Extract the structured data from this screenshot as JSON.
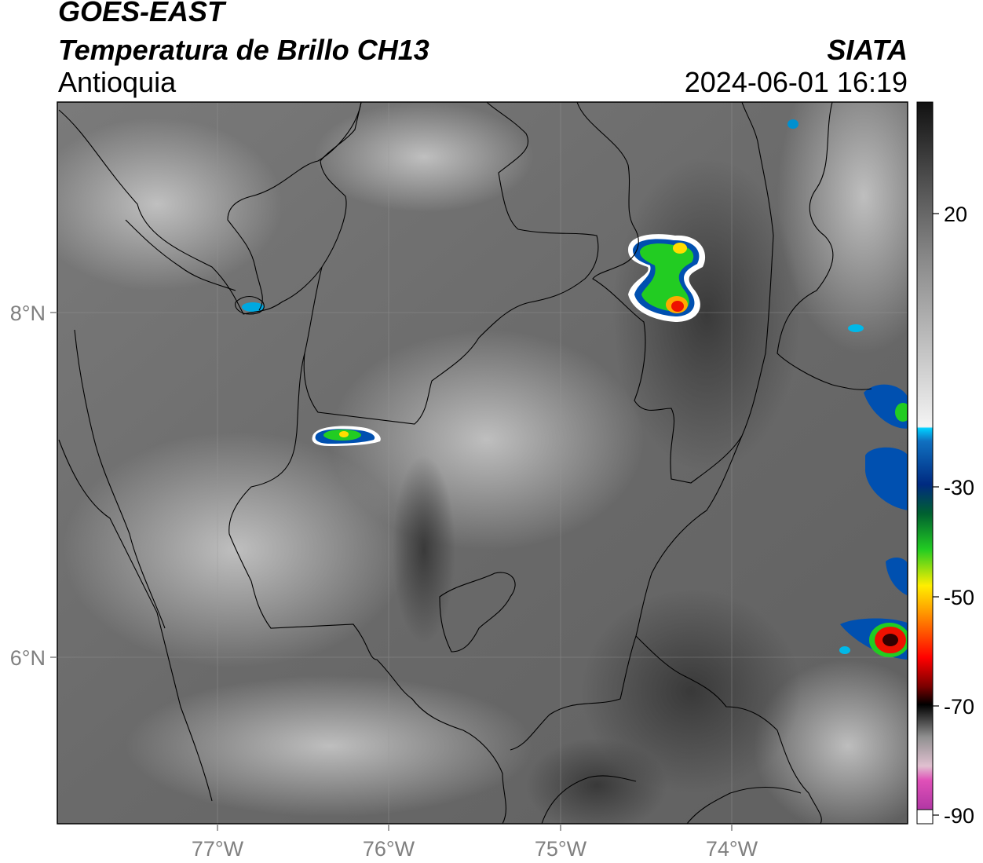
{
  "header": {
    "satellite": "GOES-EAST",
    "product": "Temperatura de Brillo CH13",
    "region": "Antioquia",
    "organization": "SIATA",
    "datetime": "2024-06-01 16:19"
  },
  "axes": {
    "longitude_ticks": [
      "77°W",
      "76°W",
      "75°W",
      "74°W"
    ],
    "latitude_ticks": [
      "8°N",
      "6°N"
    ]
  },
  "colorbar": {
    "tick_labels": [
      "20",
      "-30",
      "-50",
      "-70",
      "-90"
    ],
    "colors": {
      "magenta": "#b030b0",
      "pink": "#e8a0c8",
      "black": "#111111",
      "red": "#cc0000",
      "orange": "#ff8800",
      "yellow": "#ffee00",
      "green": "#22cc22",
      "dark_blue": "#002a80",
      "light_blue": "#00c8ff",
      "gray_light": "#e6e6e6",
      "gray_dark": "#404040"
    }
  }
}
